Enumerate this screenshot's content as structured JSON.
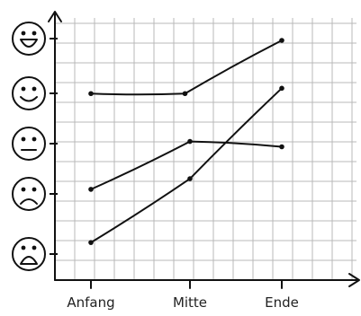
{
  "chart_data": {
    "type": "line",
    "categories": [
      "Anfang",
      "Mitte",
      "Ende"
    ],
    "y_scale": "mood (1 = very sad face, 5 = very happy face)",
    "ylim": [
      1,
      5
    ],
    "y_tick_icons": [
      "laughing-face-icon",
      "smiling-face-icon",
      "neutral-face-icon",
      "sad-face-icon",
      "crying-face-icon"
    ],
    "grid": true,
    "series": [
      {
        "values": [
          4.0,
          4.0,
          5.0
        ],
        "points": [
          [
            0.0,
            4.0
          ],
          [
            0.95,
            4.0
          ],
          [
            2.0,
            5.0
          ]
        ]
      },
      {
        "values": [
          2.2,
          3.0,
          3.0
        ],
        "points": [
          [
            0.0,
            2.2
          ],
          [
            1.0,
            3.1
          ],
          [
            2.0,
            3.0
          ]
        ]
      },
      {
        "values": [
          1.2,
          2.4,
          4.1
        ],
        "points": [
          [
            0.0,
            1.2
          ],
          [
            1.0,
            2.4
          ],
          [
            2.0,
            4.1
          ]
        ]
      }
    ]
  }
}
